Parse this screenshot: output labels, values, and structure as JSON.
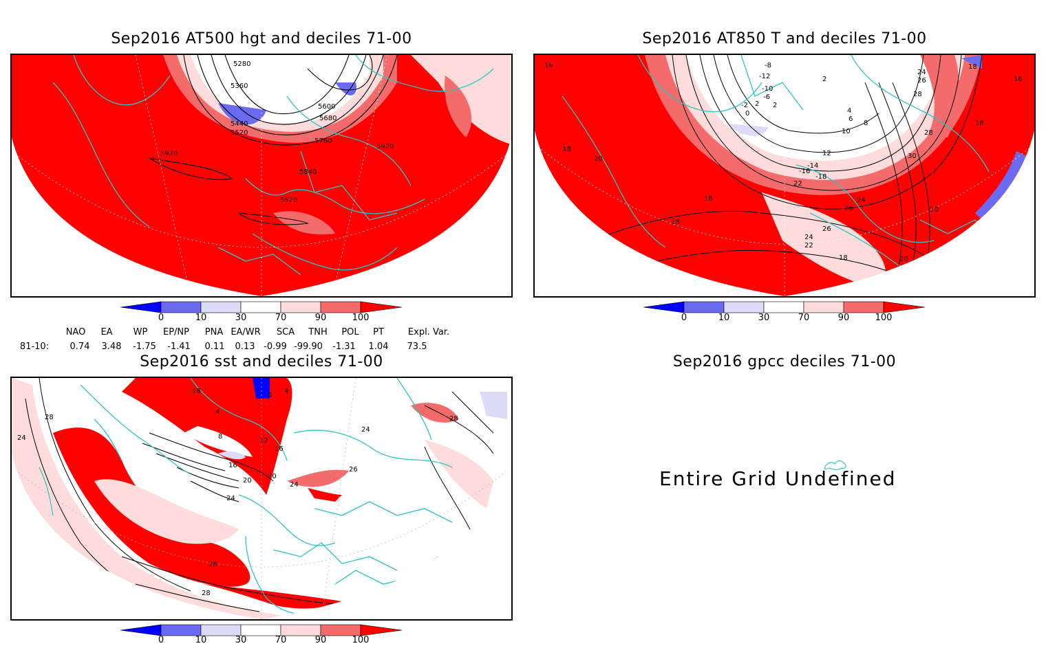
{
  "panels": {
    "hgt": {
      "title": "Sep2016 AT500 hgt and deciles 71-00",
      "labels": [
        "5280",
        "5360",
        "5440",
        "5520",
        "5600",
        "5680",
        "5760",
        "5840",
        "5920",
        "5920",
        "5920"
      ]
    },
    "t850": {
      "title": "Sep2016 AT850 T and deciles 71-00",
      "labels": [
        "16",
        "18",
        "20",
        "18",
        "18",
        "-8",
        "-12",
        "-10",
        "-6",
        "2",
        "0",
        "2",
        "-2",
        "2",
        "4",
        "6",
        "8",
        "10",
        "12",
        "-14",
        "-16",
        "-18",
        "22",
        "24",
        "26",
        "28",
        "30",
        "26",
        "24",
        "22",
        "18",
        "20",
        "20",
        "16",
        "18",
        "18",
        "24",
        "26",
        "28"
      ]
    },
    "sst": {
      "title": "Sep2016 sst and deciles 71-00",
      "labels": [
        "28",
        "24",
        "18",
        "4",
        "8",
        "12",
        "16",
        "20",
        "24",
        "28",
        "28",
        "0",
        "4",
        "16",
        "20",
        "24",
        "26",
        "24",
        "28"
      ]
    },
    "gpcc": {
      "title": "Sep2016 gpcc deciles 71-00",
      "message": "Entire Grid Undefined"
    }
  },
  "legend": {
    "ticks": [
      "0",
      "10",
      "30",
      "70",
      "90",
      "100"
    ],
    "colors": {
      "c0": "#0000ff",
      "c10": "#6b6bf2",
      "c30": "#dcdcf8",
      "c70": "#ffdcdc",
      "c90": "#f46b6b",
      "c100": "#ff0000"
    }
  },
  "indices": {
    "headers": [
      "NAO",
      "EA",
      "WP",
      "EP/NP",
      "PNA",
      "EA/WR",
      "SCA",
      "TNH",
      "POL",
      "PT",
      "Expl. Var."
    ],
    "row_label": "81-10:",
    "values": [
      "0.74",
      "3.48",
      "-1.75",
      "-1.41",
      "0.11",
      "0.13",
      "-0.99",
      "-99.90",
      "-1.31",
      "1.04",
      "73.5"
    ]
  },
  "colors": {
    "coast": "#2ec4c4",
    "contour": "#000000",
    "frame": "#000000"
  }
}
